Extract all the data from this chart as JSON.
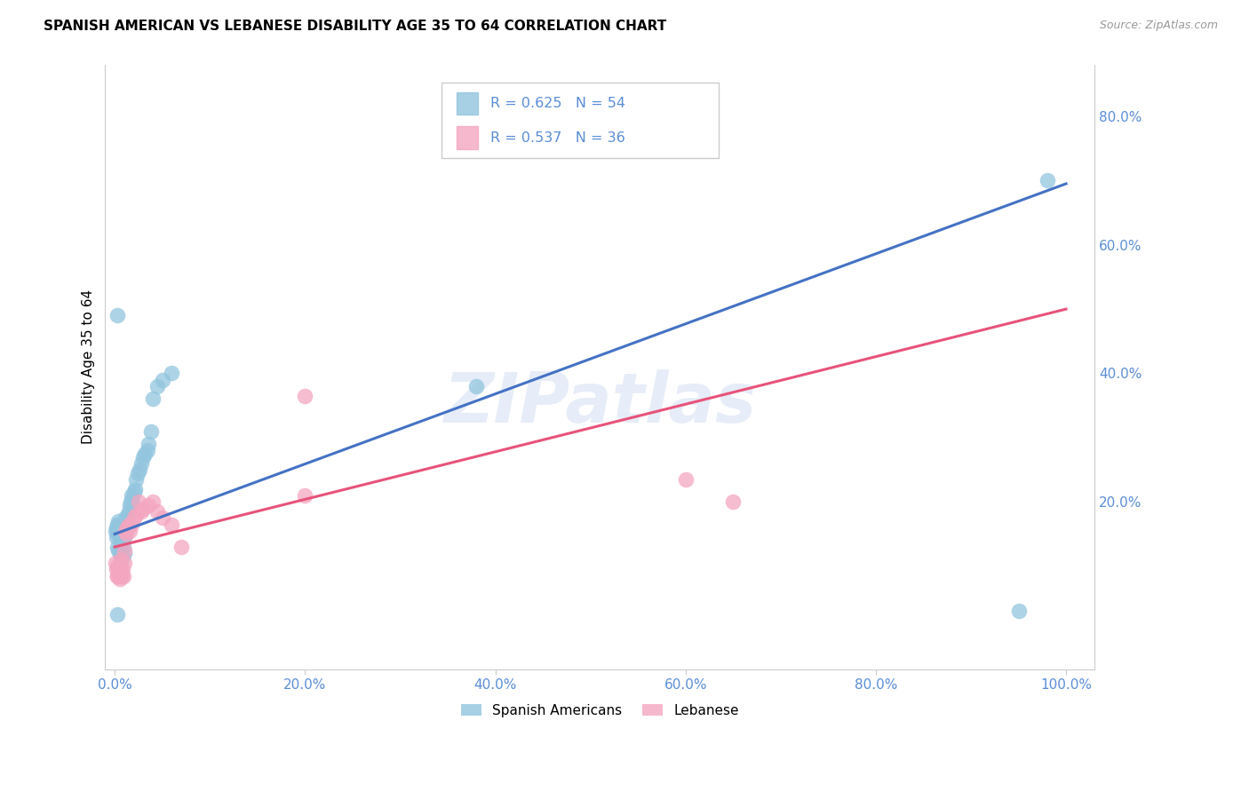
{
  "title": "SPANISH AMERICAN VS LEBANESE DISABILITY AGE 35 TO 64 CORRELATION CHART",
  "source": "Source: ZipAtlas.com",
  "ylabel": "Disability Age 35 to 64",
  "blue_R": 0.625,
  "blue_N": 54,
  "pink_R": 0.537,
  "pink_N": 36,
  "blue_color": "#92c5de",
  "pink_color": "#f4a6c0",
  "line_blue": "#4472c4",
  "line_pink": "#e8537a",
  "axis_tick_color": "#5b8ed6",
  "watermark": "ZIPatlas",
  "legend_label_blue": "Spanish Americans",
  "legend_label_pink": "Lebanese",
  "blue_x": [
    0.001,
    0.002,
    0.002,
    0.003,
    0.003,
    0.003,
    0.004,
    0.004,
    0.004,
    0.005,
    0.005,
    0.005,
    0.006,
    0.006,
    0.006,
    0.007,
    0.007,
    0.008,
    0.008,
    0.008,
    0.009,
    0.009,
    0.01,
    0.01,
    0.011,
    0.011,
    0.012,
    0.013,
    0.014,
    0.015,
    0.016,
    0.017,
    0.018,
    0.019,
    0.02,
    0.021,
    0.022,
    0.024,
    0.026,
    0.028,
    0.03,
    0.032,
    0.034,
    0.035,
    0.038,
    0.04,
    0.045,
    0.05,
    0.06,
    0.003,
    0.003,
    0.38,
    0.98,
    0.95
  ],
  "blue_y": [
    0.155,
    0.145,
    0.16,
    0.13,
    0.15,
    0.165,
    0.125,
    0.155,
    0.17,
    0.12,
    0.145,
    0.165,
    0.115,
    0.14,
    0.16,
    0.11,
    0.15,
    0.115,
    0.14,
    0.165,
    0.13,
    0.155,
    0.12,
    0.145,
    0.155,
    0.175,
    0.16,
    0.175,
    0.18,
    0.185,
    0.195,
    0.2,
    0.21,
    0.205,
    0.215,
    0.22,
    0.235,
    0.245,
    0.25,
    0.26,
    0.27,
    0.275,
    0.28,
    0.29,
    0.31,
    0.36,
    0.38,
    0.39,
    0.4,
    0.49,
    0.025,
    0.38,
    0.7,
    0.03
  ],
  "pink_x": [
    0.001,
    0.002,
    0.003,
    0.003,
    0.004,
    0.005,
    0.005,
    0.006,
    0.006,
    0.007,
    0.008,
    0.009,
    0.01,
    0.01,
    0.011,
    0.012,
    0.013,
    0.015,
    0.016,
    0.018,
    0.02,
    0.022,
    0.025,
    0.028,
    0.03,
    0.035,
    0.04,
    0.045,
    0.05,
    0.06,
    0.07,
    0.2,
    0.6,
    0.65,
    0.2,
    0.003
  ],
  "pink_y": [
    0.105,
    0.095,
    0.085,
    0.1,
    0.09,
    0.08,
    0.1,
    0.09,
    0.11,
    0.085,
    0.095,
    0.085,
    0.105,
    0.125,
    0.155,
    0.15,
    0.16,
    0.165,
    0.155,
    0.165,
    0.175,
    0.18,
    0.2,
    0.185,
    0.19,
    0.195,
    0.2,
    0.185,
    0.175,
    0.165,
    0.13,
    0.21,
    0.235,
    0.2,
    0.365,
    0.085
  ],
  "blue_line_x0": 0.0,
  "blue_line_x1": 1.0,
  "blue_line_y0": 0.15,
  "blue_line_y1": 0.695,
  "pink_line_x0": 0.0,
  "pink_line_x1": 1.0,
  "pink_line_y0": 0.13,
  "pink_line_y1": 0.5,
  "xlim_min": -0.01,
  "xlim_max": 1.03,
  "ylim_min": -0.06,
  "ylim_max": 0.88,
  "x_ticks": [
    0.0,
    0.2,
    0.4,
    0.6,
    0.8,
    1.0
  ],
  "x_tick_labels": [
    "0.0%",
    "20.0%",
    "40.0%",
    "60.0%",
    "80.0%",
    "100.0%"
  ],
  "y_ticks_right": [
    0.2,
    0.4,
    0.6,
    0.8
  ],
  "y_tick_labels_right": [
    "20.0%",
    "40.0%",
    "60.0%",
    "80.0%"
  ]
}
